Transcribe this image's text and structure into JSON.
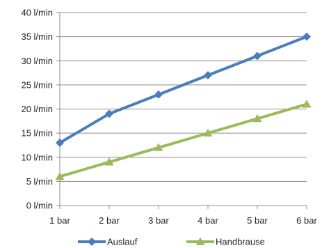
{
  "chart_data": {
    "type": "line",
    "x": [
      1,
      2,
      3,
      4,
      5,
      6
    ],
    "x_tick_labels": [
      "1 bar",
      "2 bar",
      "3 bar",
      "4 bar",
      "5 bar",
      "6 bar"
    ],
    "y_ticks": [
      0,
      5,
      10,
      15,
      20,
      25,
      30,
      35,
      40
    ],
    "y_tick_labels": [
      "0 l/min",
      "5 l/min",
      "10 l/min",
      "15 l/min",
      "20 l/min",
      "25 l/min",
      "30 l/min",
      "35 l/min",
      "40 l/min"
    ],
    "ylim": [
      0,
      40
    ],
    "grid": true,
    "legend_position": "bottom",
    "series": [
      {
        "name": "Auslauf",
        "values": [
          13,
          19,
          23,
          27,
          31,
          35
        ],
        "color": "#4a7ebb",
        "marker": "diamond"
      },
      {
        "name": "Handbrause",
        "values": [
          6,
          9,
          12,
          15,
          18,
          21
        ],
        "color": "#9bbb59",
        "marker": "triangle"
      }
    ]
  }
}
